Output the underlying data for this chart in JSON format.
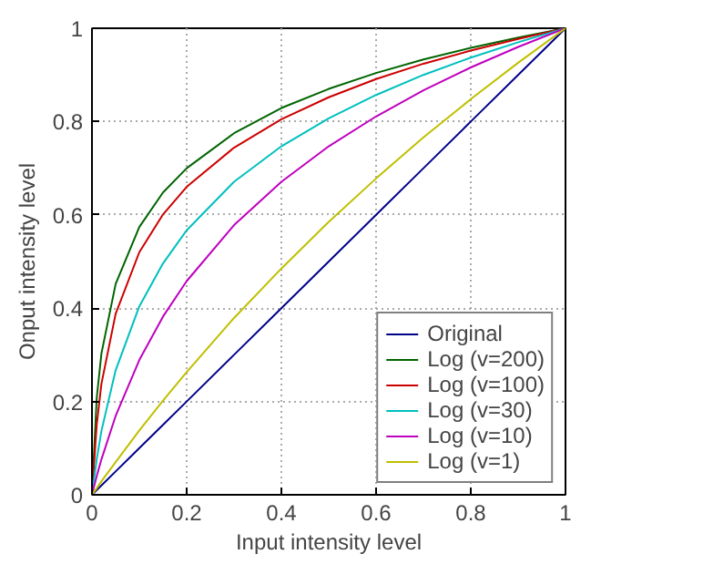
{
  "chart_data": {
    "type": "line",
    "xlabel": "Input intensity level",
    "ylabel": "Onput intensity level",
    "x": [
      0,
      0.01,
      0.02,
      0.05,
      0.1,
      0.15,
      0.2,
      0.3,
      0.4,
      0.5,
      0.6,
      0.7,
      0.8,
      0.9,
      1
    ],
    "series": [
      {
        "name": "Original",
        "color": "#00008b",
        "values": [
          0,
          0.01,
          0.02,
          0.05,
          0.1,
          0.15,
          0.2,
          0.3,
          0.4,
          0.5,
          0.6,
          0.7,
          0.8,
          0.9,
          1
        ]
      },
      {
        "name": "Log (v=200)",
        "color": "#006400",
        "values": [
          0,
          0.207,
          0.303,
          0.452,
          0.574,
          0.648,
          0.7,
          0.775,
          0.829,
          0.87,
          0.904,
          0.933,
          0.958,
          0.98,
          1
        ]
      },
      {
        "name": "Log (v=100)",
        "color": "#cc0000",
        "values": [
          0,
          0.15,
          0.238,
          0.388,
          0.52,
          0.601,
          0.66,
          0.744,
          0.805,
          0.852,
          0.891,
          0.924,
          0.952,
          0.977,
          1
        ]
      },
      {
        "name": "Log (v=30)",
        "color": "#00bfbf",
        "values": [
          0,
          0.076,
          0.137,
          0.267,
          0.404,
          0.496,
          0.567,
          0.671,
          0.747,
          0.807,
          0.857,
          0.9,
          0.937,
          0.97,
          1
        ]
      },
      {
        "name": "Log (v=10)",
        "color": "#bf00bf",
        "values": [
          0,
          0.04,
          0.076,
          0.169,
          0.289,
          0.382,
          0.458,
          0.578,
          0.671,
          0.747,
          0.811,
          0.867,
          0.916,
          0.96,
          1
        ]
      },
      {
        "name": "Log (v=1)",
        "color": "#bfbf00",
        "values": [
          0,
          0.014,
          0.029,
          0.07,
          0.138,
          0.202,
          0.263,
          0.379,
          0.485,
          0.585,
          0.678,
          0.766,
          0.848,
          0.926,
          1
        ]
      }
    ],
    "xlim": [
      0,
      1
    ],
    "ylim": [
      0,
      1
    ],
    "xticks": [
      0,
      0.2,
      0.4,
      0.6,
      0.8,
      1
    ],
    "yticks": [
      0,
      0.2,
      0.4,
      0.6,
      0.8,
      1
    ],
    "grid": true,
    "legend": "bottom right",
    "line_style": "solid"
  }
}
